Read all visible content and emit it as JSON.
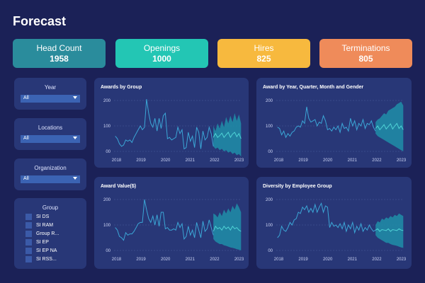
{
  "title": "Forecast",
  "kpis": [
    {
      "label": "Head Count",
      "value": "1958",
      "color": "#2a8c9c"
    },
    {
      "label": "Openings",
      "value": "1000",
      "color": "#23c6b4"
    },
    {
      "label": "Hires",
      "value": "825",
      "color": "#f7b93e"
    },
    {
      "label": "Terminations",
      "value": "805",
      "color": "#ef8b5a"
    }
  ],
  "filters": [
    {
      "label": "Year",
      "value": "All"
    },
    {
      "label": "Locations",
      "value": "All"
    },
    {
      "label": "Organization",
      "value": "All"
    }
  ],
  "group": {
    "label": "Group",
    "items": [
      "SI DS",
      "SI RAM",
      "Group R...",
      "SI EP",
      "SI EP NA",
      "SI RSS..."
    ]
  },
  "colors": {
    "line": "#3ba6d6",
    "band": "#1f8ea8",
    "forecast_line": "#4fd3d6"
  },
  "chart_data": [
    {
      "type": "line",
      "title": "Awards by Group",
      "yticks": [
        "200",
        "100",
        "00"
      ],
      "ylim": [
        0,
        200
      ],
      "xticks": [
        "2018",
        "2019",
        "2020",
        "2021",
        "2022",
        "2023"
      ],
      "xstart": 2017.9,
      "xend": 2023.1,
      "forecast_start": 2021.95,
      "history": [
        60,
        50,
        30,
        20,
        25,
        45,
        40,
        45,
        35,
        55,
        70,
        85,
        100,
        85,
        95,
        205,
        150,
        110,
        95,
        130,
        80,
        130,
        90,
        140,
        150,
        50,
        55,
        45,
        50,
        55,
        95,
        70,
        85,
        10,
        15,
        75,
        40,
        60,
        15,
        95,
        75,
        10,
        80,
        45,
        55,
        95,
        70,
        20
      ],
      "forecast": [
        55,
        70,
        55,
        62,
        72,
        55,
        65,
        75,
        55,
        68,
        75,
        58,
        70,
        50
      ],
      "upper": [
        100,
        80,
        110,
        90,
        120,
        95,
        135,
        110,
        140,
        115,
        150,
        120,
        145,
        110
      ],
      "lower": [
        20,
        10,
        15,
        5,
        10,
        0,
        5,
        -5,
        0,
        -10,
        -5,
        -15,
        -10,
        -20
      ]
    },
    {
      "type": "line",
      "title": "Award by Year, Quarter, Month and Gender",
      "yticks": [
        "200",
        "100",
        "00"
      ],
      "ylim": [
        0,
        200
      ],
      "xticks": [
        "2018",
        "2019",
        "2020",
        "2021",
        "2022",
        "2023"
      ],
      "xstart": 2017.9,
      "xend": 2023.1,
      "forecast_start": 2021.95,
      "history": [
        95,
        90,
        65,
        80,
        55,
        70,
        60,
        75,
        80,
        95,
        100,
        95,
        120,
        110,
        175,
        130,
        115,
        120,
        125,
        100,
        115,
        110,
        140,
        120,
        85,
        90,
        80,
        95,
        85,
        100,
        75,
        110,
        90,
        95,
        80,
        130,
        100,
        120,
        85,
        110,
        100,
        125,
        90,
        110,
        105,
        120,
        95,
        80
      ],
      "forecast": [
        90,
        100,
        85,
        95,
        105,
        88,
        98,
        108,
        88,
        100,
        110,
        90,
        100,
        85
      ],
      "upper": [
        115,
        125,
        130,
        140,
        150,
        145,
        160,
        165,
        170,
        175,
        185,
        190,
        195,
        180
      ],
      "lower": [
        70,
        60,
        55,
        50,
        45,
        40,
        35,
        30,
        25,
        20,
        15,
        10,
        5,
        0
      ]
    },
    {
      "type": "line",
      "title": "Award Value($)",
      "yticks": [
        "200",
        "100",
        "00"
      ],
      "ylim": [
        0,
        200
      ],
      "xticks": [
        "2018",
        "2019",
        "2020",
        "2021",
        "2022",
        "2023"
      ],
      "xstart": 2017.9,
      "xend": 2023.1,
      "forecast_start": 2021.95,
      "history": [
        90,
        80,
        55,
        50,
        40,
        70,
        60,
        65,
        65,
        75,
        90,
        105,
        110,
        110,
        200,
        160,
        125,
        110,
        135,
        100,
        140,
        95,
        150,
        150,
        85,
        90,
        80,
        80,
        85,
        80,
        110,
        90,
        105,
        45,
        55,
        95,
        60,
        80,
        50,
        110,
        80,
        50,
        115,
        75,
        85,
        120,
        90,
        60
      ],
      "forecast": [
        75,
        95,
        85,
        90,
        80,
        95,
        85,
        92,
        80,
        95,
        85,
        90,
        80,
        75
      ],
      "upper": [
        145,
        140,
        130,
        150,
        135,
        160,
        145,
        165,
        150,
        175,
        160,
        185,
        170,
        150
      ],
      "lower": [
        45,
        35,
        30,
        25,
        25,
        20,
        18,
        15,
        12,
        10,
        8,
        5,
        3,
        0
      ]
    },
    {
      "type": "line",
      "title": "Diversity by Employee Group",
      "yticks": [
        "200",
        "100",
        "00"
      ],
      "ylim": [
        0,
        200
      ],
      "xticks": [
        "2018",
        "2019",
        "2020",
        "2021",
        "2022",
        "2023"
      ],
      "xstart": 2017.9,
      "xend": 2023.1,
      "forecast_start": 2021.95,
      "history": [
        50,
        60,
        95,
        80,
        75,
        90,
        110,
        100,
        120,
        125,
        150,
        145,
        170,
        160,
        175,
        150,
        165,
        150,
        180,
        150,
        170,
        185,
        150,
        175,
        170,
        90,
        110,
        95,
        100,
        90,
        105,
        85,
        110,
        75,
        100,
        85,
        110,
        70,
        95,
        80,
        105,
        75,
        90,
        80,
        100,
        85,
        75,
        80
      ],
      "forecast": [
        80,
        85,
        75,
        82,
        80,
        78,
        85,
        75,
        82,
        80,
        78,
        85,
        80,
        78
      ],
      "upper": [
        100,
        115,
        110,
        125,
        120,
        130,
        125,
        135,
        130,
        140,
        135,
        145,
        140,
        135
      ],
      "lower": [
        60,
        50,
        45,
        40,
        35,
        30,
        30,
        25,
        22,
        20,
        18,
        15,
        12,
        10
      ]
    }
  ]
}
